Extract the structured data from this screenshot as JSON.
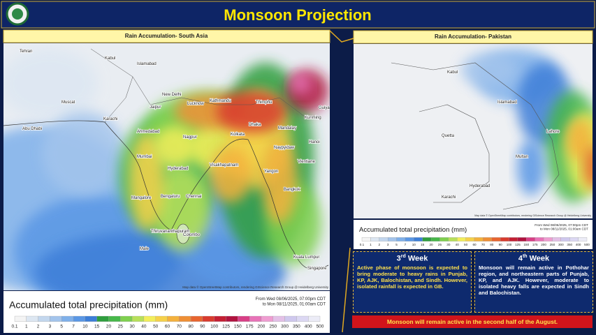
{
  "header": {
    "title": "Monsoon Projection"
  },
  "panels": {
    "left": {
      "title": "Rain Accumulation- South Asia",
      "cities": [
        "Tehran",
        "Muscat",
        "Abu Dhabi",
        "Kabul",
        "Islamabad",
        "New Delhi",
        "Jaipur",
        "Lucknow",
        "Kathmandu",
        "Thimphu",
        "Karachi",
        "Ahmedabad",
        "Dhaka",
        "Kolkata",
        "Mumbai",
        "Nagpur",
        "Hyderabad",
        "Visakhapatnam",
        "Mangalore",
        "Bengaluru",
        "Chennai",
        "Thiruvananthapuram",
        "Colombo",
        "Male",
        "Kunming",
        "Guiyang",
        "Mandalay",
        "Naypyidaw",
        "Hanoi",
        "Vientiane",
        "Yangon",
        "Bangkok",
        "Kuala Lumpur",
        "Singapore"
      ]
    },
    "right": {
      "title": "Rain Accumulation- Pakistan",
      "cities": [
        "Kabul",
        "Islamabad",
        "Lahore",
        "Quetta",
        "Multan",
        "Hyderabad",
        "Karachi"
      ]
    }
  },
  "attribution": "Map data © OpenStreetMap contributors, rendering GIScience Research Group @ Heidelberg University",
  "legend": {
    "title": "Accumulated total precipitation (mm)",
    "from": "From Wed 08/06/2025, 07:00pm CDT",
    "to": "to Mon 08/11/2025, 01:00am CDT",
    "scale": [
      0.1,
      1,
      2,
      3,
      5,
      7,
      10,
      15,
      20,
      25,
      30,
      40,
      50,
      60,
      70,
      80,
      90,
      100,
      125,
      150,
      175,
      200,
      250,
      300,
      350,
      400,
      500
    ],
    "colors": [
      "#f4f4f4",
      "#dde7f2",
      "#c3d7ee",
      "#a3c4ec",
      "#7fb0ea",
      "#5a97e5",
      "#3c7ed8",
      "#2f9e3e",
      "#47b84a",
      "#7fd04f",
      "#b8e05a",
      "#f3ee5a",
      "#f6d14a",
      "#f4b13d",
      "#ef8f35",
      "#e8652f",
      "#d93b2e",
      "#c41f33",
      "#b0133f",
      "#d83f86",
      "#e873b8",
      "#ef9dd1",
      "#e3c0e7",
      "#cfc8ee",
      "#dcd8f3",
      "#ececf7"
    ]
  },
  "weeks": [
    {
      "number": "3",
      "suffix": "rd",
      "label": "Week",
      "text": "Active phase of monsoon is expected to bring moderate to heavy rains in Punjab, KP, AJK, Balochistan, and Sindh. However, isolated rainfall is expected in GB."
    },
    {
      "number": "4",
      "suffix": "th",
      "label": "Week",
      "text": "Monsoon will remain active in Pothohar region, and northeastern parts of Punjab, KP, and AJK. However, moderate to isolated heavy falls are expected in Sindh and Balochistan."
    }
  ],
  "banner": "Monsoon will remain active in the second half of the August."
}
